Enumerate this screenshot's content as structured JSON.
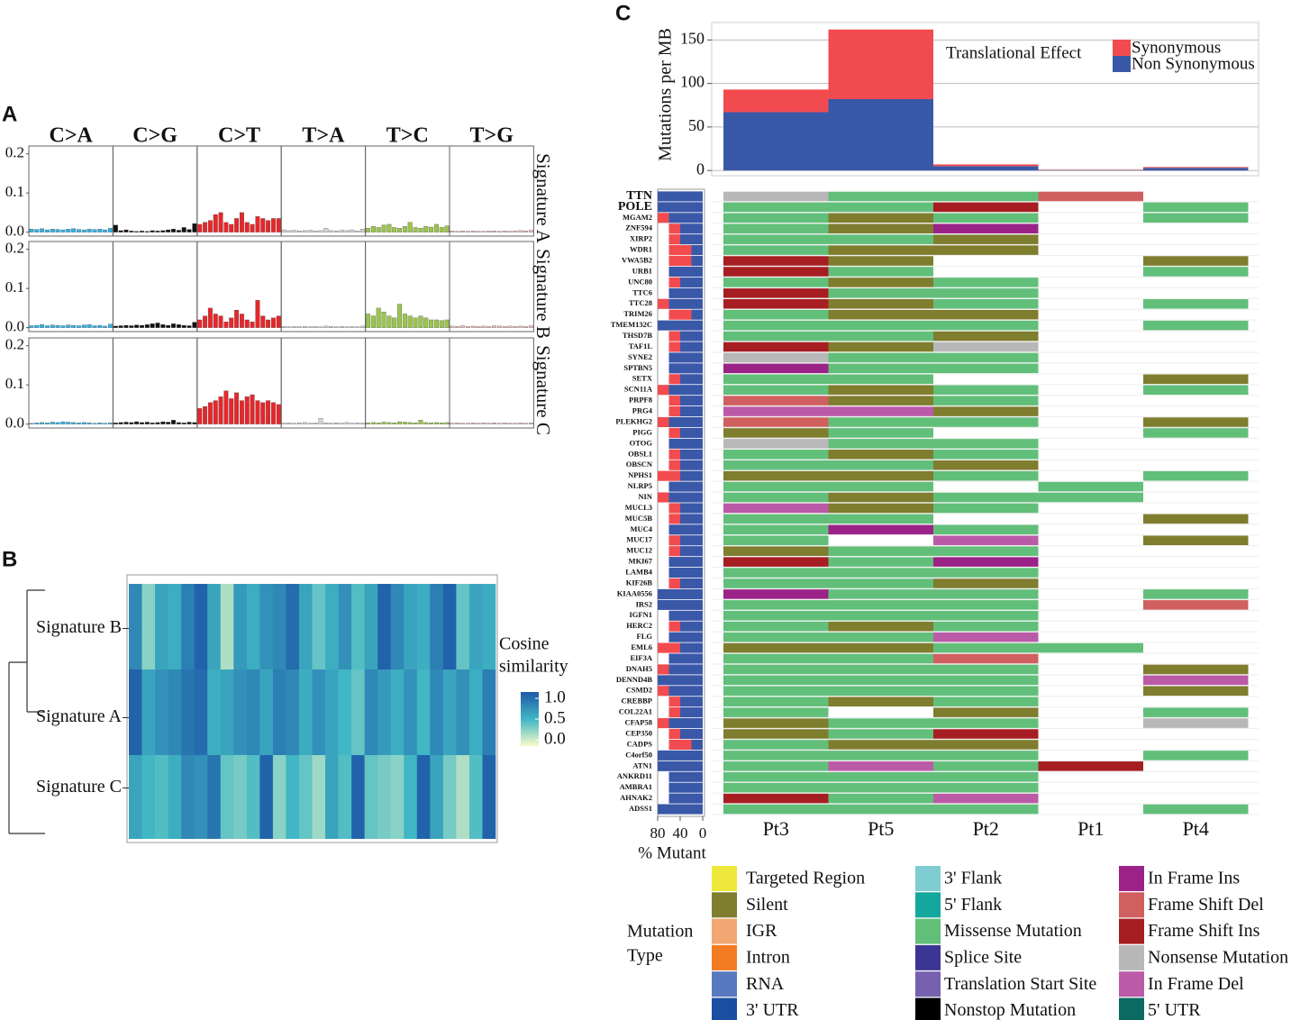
{
  "chart_data": [
    {
      "panel": "A",
      "type": "signature_bars",
      "groups": [
        "C>A",
        "C>G",
        "C>T",
        "T>A",
        "T>C",
        "T>G"
      ],
      "group_colors": [
        "#2fb3e6",
        "#111111",
        "#e8262a",
        "#d4d4d4",
        "#9bc54c",
        "#f2c0c0"
      ],
      "series": [
        {
          "name": "Signature A",
          "values": [
            0.008,
            0.007,
            0.009,
            0.006,
            0.008,
            0.007,
            0.006,
            0.008,
            0.009,
            0.007,
            0.006,
            0.008,
            0.007,
            0.008,
            0.006,
            0.01,
            0.018,
            0.004,
            0.006,
            0.003,
            0.002,
            0.003,
            0.002,
            0.004,
            0.003,
            0.004,
            0.006,
            0.008,
            0.005,
            0.012,
            0.007,
            0.022,
            0.02,
            0.025,
            0.03,
            0.045,
            0.05,
            0.025,
            0.02,
            0.035,
            0.05,
            0.025,
            0.02,
            0.04,
            0.035,
            0.03,
            0.035,
            0.035,
            0.006,
            0.004,
            0.005,
            0.003,
            0.004,
            0.005,
            0.003,
            0.004,
            0.01,
            0.004,
            0.003,
            0.005,
            0.004,
            0.006,
            0.003,
            0.008,
            0.01,
            0.015,
            0.012,
            0.018,
            0.02,
            0.012,
            0.01,
            0.015,
            0.025,
            0.012,
            0.01,
            0.015,
            0.013,
            0.02,
            0.012,
            0.016,
            0.003,
            0.002,
            0.003,
            0.002,
            0.003,
            0.002,
            0.002,
            0.003,
            0.003,
            0.002,
            0.003,
            0.002,
            0.003,
            0.004,
            0.003,
            0.005
          ]
        },
        {
          "name": "Signature B",
          "values": [
            0.005,
            0.006,
            0.008,
            0.005,
            0.007,
            0.006,
            0.005,
            0.007,
            0.006,
            0.005,
            0.007,
            0.008,
            0.005,
            0.006,
            0.004,
            0.009,
            0.004,
            0.005,
            0.006,
            0.005,
            0.007,
            0.006,
            0.008,
            0.01,
            0.012,
            0.008,
            0.006,
            0.01,
            0.008,
            0.006,
            0.005,
            0.014,
            0.02,
            0.03,
            0.05,
            0.035,
            0.03,
            0.015,
            0.025,
            0.045,
            0.035,
            0.02,
            0.015,
            0.07,
            0.03,
            0.02,
            0.025,
            0.03,
            0.003,
            0.002,
            0.003,
            0.002,
            0.003,
            0.002,
            0.003,
            0.002,
            0.004,
            0.003,
            0.002,
            0.003,
            0.002,
            0.003,
            0.002,
            0.004,
            0.035,
            0.03,
            0.05,
            0.04,
            0.03,
            0.025,
            0.06,
            0.035,
            0.03,
            0.025,
            0.03,
            0.025,
            0.02,
            0.02,
            0.018,
            0.02,
            0.004,
            0.003,
            0.005,
            0.003,
            0.004,
            0.003,
            0.004,
            0.003,
            0.005,
            0.004,
            0.003,
            0.004,
            0.003,
            0.004,
            0.003,
            0.005
          ]
        },
        {
          "name": "Signature C",
          "values": [
            0.002,
            0.003,
            0.004,
            0.003,
            0.005,
            0.004,
            0.006,
            0.005,
            0.004,
            0.003,
            0.004,
            0.003,
            0.002,
            0.003,
            0.002,
            0.003,
            0.003,
            0.004,
            0.005,
            0.004,
            0.006,
            0.004,
            0.005,
            0.003,
            0.004,
            0.006,
            0.005,
            0.01,
            0.004,
            0.003,
            0.005,
            0.004,
            0.04,
            0.045,
            0.055,
            0.06,
            0.07,
            0.085,
            0.065,
            0.08,
            0.06,
            0.07,
            0.075,
            0.06,
            0.055,
            0.06,
            0.055,
            0.05,
            0.002,
            0.003,
            0.002,
            0.003,
            0.004,
            0.002,
            0.003,
            0.015,
            0.003,
            0.002,
            0.003,
            0.002,
            0.004,
            0.002,
            0.003,
            0.002,
            0.003,
            0.004,
            0.003,
            0.005,
            0.004,
            0.003,
            0.006,
            0.005,
            0.004,
            0.003,
            0.01,
            0.004,
            0.003,
            0.004,
            0.003,
            0.004,
            0.002,
            0.003,
            0.002,
            0.002,
            0.003,
            0.002,
            0.003,
            0.002,
            0.003,
            0.002,
            0.003,
            0.002,
            0.002,
            0.003,
            0.002,
            0.003
          ]
        }
      ],
      "ylim": [
        -0.01,
        0.22
      ],
      "yticks": [
        {
          "value": 0,
          "label": "0.0"
        },
        0.1,
        0.2
      ]
    },
    {
      "panel": "B",
      "type": "heatmap",
      "rows": [
        "Signature B",
        "Signature A",
        "Signature C"
      ],
      "values": [
        [
          0.75,
          0.3,
          0.6,
          0.55,
          0.8,
          0.95,
          0.6,
          0.2,
          0.65,
          0.55,
          0.7,
          0.75,
          0.9,
          0.6,
          0.4,
          0.55,
          0.7,
          0.45,
          0.6,
          0.95,
          0.75,
          0.6,
          0.55,
          0.8,
          0.95,
          0.4,
          0.6,
          0.55
        ],
        [
          0.95,
          0.6,
          0.7,
          0.75,
          0.85,
          0.9,
          0.55,
          0.6,
          0.7,
          0.75,
          0.6,
          0.8,
          0.75,
          0.55,
          0.7,
          0.6,
          0.5,
          0.4,
          0.75,
          0.65,
          0.55,
          0.7,
          0.5,
          0.75,
          0.6,
          0.7,
          0.55,
          0.8
        ],
        [
          0.6,
          0.5,
          0.45,
          0.55,
          0.75,
          0.7,
          0.85,
          0.4,
          0.35,
          0.45,
          0.95,
          0.3,
          0.5,
          0.4,
          0.25,
          0.6,
          0.45,
          0.95,
          0.4,
          0.35,
          0.3,
          0.5,
          0.95,
          0.6,
          0.35,
          0.2,
          0.45,
          0.95
        ]
      ],
      "legend_title": [
        "Cosine",
        "similarity"
      ],
      "colors": [
        "#f7fbc8",
        "#41b6c4",
        "#1d5aa8"
      ],
      "clim": [
        0,
        1
      ],
      "cticks": [
        {
          "value": 1,
          "label": "1.0"
        },
        0.5,
        {
          "value": 0,
          "label": "0.0"
        }
      ]
    },
    {
      "panel": "C",
      "type": "stacked_bar",
      "y_title": "Mutations per MB",
      "legend_title": "Translational Effect",
      "series": [
        {
          "name": "Synonymous",
          "color": "#f24b4f",
          "values": [
            26,
            80,
            2,
            0.5,
            1
          ]
        },
        {
          "name": "Non Synonymous",
          "color": "#3a58a8",
          "values": [
            67,
            82,
            5,
            0.5,
            3
          ]
        }
      ],
      "ylim": [
        -6,
        170
      ],
      "yticks": [
        0,
        50,
        100,
        150
      ],
      "grid": true
    },
    {
      "type": "oncoplot",
      "genes": [
        "TTN",
        "POLE",
        "MGAM2",
        "ZNF594",
        "XIRP2",
        "WDR1",
        "VWA5B2",
        "URB1",
        "UNC80",
        "TTC6",
        "TTC28",
        "TRIM26",
        "TMEM132C",
        "THSD7B",
        "TAF1L",
        "SYNE2",
        "SPTBN5",
        "SETX",
        "SCN11A",
        "PRPF8",
        "PRG4",
        "PLEKHG2",
        "PIGG",
        "OTOG",
        "OBSL1",
        "OBSCN",
        "NPHS1",
        "NLRP5",
        "NIN",
        "MUCL3",
        "MUC5B",
        "MUC4",
        "MUC17",
        "MUC12",
        "MKI67",
        "LAMB4",
        "KIF26B",
        "KIAA0556",
        "IRS2",
        "IGFN1",
        "HERC2",
        "FLG",
        "EML6",
        "EIF3A",
        "DNAH5",
        "DENND4B",
        "CSMD2",
        "CREBBP",
        "COL22A1",
        "CFAP58",
        "CEP350",
        "CADPS",
        "C4orf50",
        "ATN1",
        "ANKRD11",
        "AMBRA1",
        "AHNAK2",
        "ADSS1"
      ],
      "highlight": [
        0,
        1
      ],
      "highlight_color": "#e8262a",
      "patients": [
        "Pt3",
        "Pt5",
        "Pt2",
        "Pt1",
        "Pt4"
      ],
      "cells": [
        [
          15,
          8,
          8,
          13,
          null
        ],
        [
          8,
          8,
          14,
          null,
          8
        ],
        [
          8,
          1,
          8,
          null,
          8
        ],
        [
          8,
          1,
          12,
          null,
          null
        ],
        [
          8,
          8,
          1,
          null,
          null
        ],
        [
          8,
          1,
          1,
          null,
          null
        ],
        [
          14,
          1,
          null,
          null,
          1
        ],
        [
          14,
          8,
          null,
          null,
          8
        ],
        [
          8,
          1,
          8,
          null,
          null
        ],
        [
          14,
          8,
          8,
          null,
          null
        ],
        [
          14,
          1,
          8,
          null,
          8
        ],
        [
          8,
          1,
          1,
          null,
          null
        ],
        [
          8,
          8,
          8,
          null,
          8
        ],
        [
          8,
          8,
          1,
          null,
          null
        ],
        [
          14,
          1,
          15,
          null,
          null
        ],
        [
          15,
          8,
          8,
          null,
          null
        ],
        [
          12,
          8,
          8,
          null,
          null
        ],
        [
          8,
          8,
          null,
          null,
          1
        ],
        [
          8,
          1,
          8,
          null,
          8
        ],
        [
          13,
          1,
          8,
          null,
          null
        ],
        [
          16,
          16,
          1,
          null,
          null
        ],
        [
          13,
          8,
          8,
          null,
          1
        ],
        [
          1,
          8,
          null,
          null,
          8
        ],
        [
          15,
          8,
          8,
          null,
          null
        ],
        [
          8,
          1,
          8,
          null,
          null
        ],
        [
          8,
          8,
          1,
          null,
          null
        ],
        [
          1,
          1,
          8,
          null,
          8
        ],
        [
          8,
          8,
          null,
          8,
          null
        ],
        [
          8,
          1,
          8,
          8,
          null
        ],
        [
          16,
          1,
          8,
          null,
          null
        ],
        [
          8,
          8,
          null,
          null,
          1
        ],
        [
          8,
          12,
          8,
          null,
          null
        ],
        [
          8,
          null,
          16,
          null,
          1
        ],
        [
          1,
          8,
          8,
          null,
          null
        ],
        [
          14,
          8,
          12,
          null,
          null
        ],
        [
          8,
          8,
          8,
          null,
          null
        ],
        [
          8,
          8,
          1,
          null,
          null
        ],
        [
          12,
          8,
          8,
          null,
          8
        ],
        [
          8,
          8,
          8,
          null,
          13
        ],
        [
          8,
          8,
          8,
          null,
          null
        ],
        [
          8,
          1,
          8,
          null,
          null
        ],
        [
          8,
          8,
          16,
          null,
          null
        ],
        [
          1,
          1,
          8,
          8,
          null
        ],
        [
          8,
          8,
          13,
          null,
          null
        ],
        [
          8,
          8,
          8,
          null,
          1
        ],
        [
          8,
          8,
          8,
          null,
          16
        ],
        [
          8,
          8,
          8,
          null,
          1
        ],
        [
          8,
          1,
          8,
          null,
          null
        ],
        [
          8,
          null,
          1,
          null,
          8
        ],
        [
          1,
          8,
          8,
          null,
          15
        ],
        [
          1,
          8,
          14,
          null,
          null
        ],
        [
          8,
          1,
          1,
          null,
          null
        ],
        [
          8,
          8,
          8,
          null,
          8
        ],
        [
          8,
          16,
          8,
          14,
          null
        ],
        [
          8,
          8,
          8,
          null,
          null
        ],
        [
          8,
          8,
          8,
          null,
          null
        ],
        [
          14,
          8,
          16,
          null,
          null
        ],
        [
          8,
          8,
          8,
          null,
          8
        ]
      ],
      "non_synonymous_pct": [
        80,
        80,
        60,
        40,
        40,
        20,
        20,
        60,
        40,
        60,
        60,
        20,
        80,
        40,
        40,
        60,
        60,
        40,
        60,
        40,
        40,
        60,
        40,
        60,
        40,
        40,
        40,
        60,
        60,
        40,
        40,
        60,
        40,
        40,
        60,
        60,
        40,
        80,
        80,
        60,
        40,
        60,
        40,
        60,
        60,
        80,
        60,
        40,
        40,
        60,
        40,
        20,
        80,
        80,
        60,
        60,
        60,
        80
      ],
      "synonymous_pct": [
        0,
        0,
        20,
        20,
        20,
        40,
        40,
        0,
        20,
        0,
        20,
        40,
        0,
        20,
        20,
        0,
        0,
        20,
        20,
        20,
        20,
        20,
        20,
        0,
        20,
        20,
        40,
        0,
        20,
        20,
        20,
        0,
        20,
        20,
        0,
        0,
        20,
        0,
        0,
        0,
        20,
        0,
        40,
        0,
        20,
        0,
        20,
        20,
        20,
        20,
        20,
        40,
        0,
        0,
        0,
        0,
        0,
        0
      ],
      "pct_colors": [
        "#3a58a8",
        "#f24b4f"
      ],
      "x_title": "% Mutant",
      "xlim": [
        0,
        80
      ],
      "xticks": [
        80,
        40,
        0
      ],
      "legend_title": [
        "Mutation",
        "Type"
      ],
      "mutation_types": [
        {
          "name": "Targeted Region",
          "color": "#eee83a"
        },
        {
          "name": "Silent",
          "color": "#7f7d2e"
        },
        {
          "name": "IGR",
          "color": "#f2a773"
        },
        {
          "name": "Intron",
          "color": "#f37b22"
        },
        {
          "name": "RNA",
          "color": "#5878c0"
        },
        {
          "name": "3' UTR",
          "color": "#1a4ea0"
        },
        {
          "name": "3' Flank",
          "color": "#7fcdd3"
        },
        {
          "name": "5' Flank",
          "color": "#14a79c"
        },
        {
          "name": "Missense Mutation",
          "color": "#62bf7a"
        },
        {
          "name": "Splice Site",
          "color": "#3c3593"
        },
        {
          "name": "Translation Start Site",
          "color": "#7760ae"
        },
        {
          "name": "Nonstop Mutation",
          "color": "#000000"
        },
        {
          "name": "In Frame Ins",
          "color": "#9b2387"
        },
        {
          "name": "Frame Shift Del",
          "color": "#d05f5f"
        },
        {
          "name": "Frame Shift Ins",
          "color": "#a61e22"
        },
        {
          "name": "Nonsense Mutation",
          "color": "#b8b8b8"
        },
        {
          "name": "In Frame Del",
          "color": "#bb5ba8"
        },
        {
          "name": "5' UTR",
          "color": "#0b6b63"
        }
      ]
    }
  ]
}
